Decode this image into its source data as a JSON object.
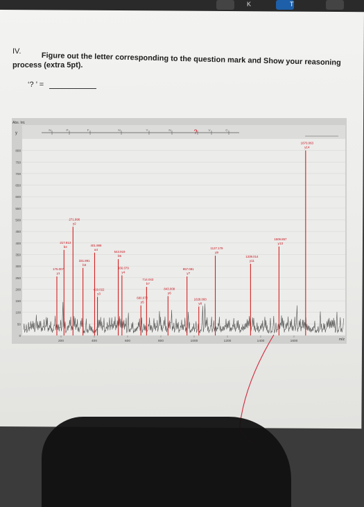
{
  "question": {
    "number": "IV.",
    "line1": "Figure out the letter corresponding to the question mark and Show your reasoning",
    "line2": "process (extra 5pt).",
    "answer_prompt": "‘? ’  ="
  },
  "chart_data": {
    "type": "bar",
    "title": "",
    "ylabel": "Abs. Int.",
    "xlabel": "m/z",
    "xlim": [
      100,
      1800
    ],
    "ylim": [
      0,
      850
    ],
    "x_ticks": [
      200,
      400,
      600,
      800,
      1000,
      1200,
      1400,
      1600
    ],
    "y_ticks": [
      0,
      50,
      100,
      150,
      200,
      250,
      300,
      350,
      400,
      450,
      500,
      550,
      600,
      650,
      700,
      750,
      800
    ],
    "ion_row_label": "y",
    "ion_ladder_labels": [
      "N",
      "P",
      "F",
      "N",
      "Y",
      "N",
      "?",
      "V",
      "C"
    ],
    "peaks": [
      {
        "mz": 175.007,
        "intensity": 255,
        "mz_label": "175.007",
        "ion": "y1"
      },
      {
        "mz": 217.913,
        "intensity": 370,
        "mz_label": "217.913",
        "ion": "b2"
      },
      {
        "mz": 271.996,
        "intensity": 470,
        "mz_label": "271.996",
        "ion": "y2"
      },
      {
        "mz": 331.891,
        "intensity": 292,
        "mz_label": "331.891",
        "ion": "b3"
      },
      {
        "mz": 401.988,
        "intensity": 358,
        "mz_label": "401.988",
        "ion": "a4"
      },
      {
        "mz": 419.022,
        "intensity": 167,
        "mz_label": "419.022",
        "ion": "y3"
      },
      {
        "mz": 543.919,
        "intensity": 330,
        "mz_label": "543.919",
        "ion": "b5"
      },
      {
        "mz": 566.079,
        "intensity": 260,
        "mz_label": "566.079",
        "ion": "y4"
      },
      {
        "mz": 680.072,
        "intensity": 130,
        "mz_label": "680.072",
        "ion": "y5"
      },
      {
        "mz": 714.043,
        "intensity": 210,
        "mz_label": "714.043",
        "ion": "b7"
      },
      {
        "mz": 843.008,
        "intensity": 170,
        "mz_label": "843.008",
        "ion": "y6"
      },
      {
        "mz": 957.081,
        "intensity": 255,
        "mz_label": "957.081",
        "ion": "y7"
      },
      {
        "mz": 1028.06,
        "intensity": 125,
        "mz_label": "1028.060",
        "ion": "y8"
      },
      {
        "mz": 1127.179,
        "intensity": 345,
        "mz_label": "1127.179",
        "ion": "y9"
      },
      {
        "mz": 1339.014,
        "intensity": 310,
        "mz_label": "1339.014",
        "ion": "y11"
      },
      {
        "mz": 1509.857,
        "intensity": 385,
        "mz_label": "1509.857",
        "ion": "y13"
      },
      {
        "mz": 1670.063,
        "intensity": 800,
        "mz_label": "1670.063",
        "ion": "y14"
      }
    ],
    "colors": {
      "peak": "#d21f1f",
      "label": "#c8101a",
      "noise": "#555555",
      "panel": "#c8c8c8",
      "plot_bg": "#ececea"
    }
  }
}
